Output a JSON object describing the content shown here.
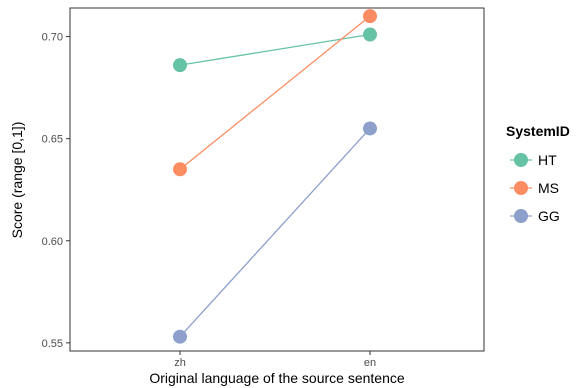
{
  "chart_data": {
    "type": "line",
    "categories": [
      "zh",
      "en"
    ],
    "xlabel": "Original language of the source sentence",
    "ylabel": "Score (range [0,1])",
    "ylim": [
      0.546,
      0.714
    ],
    "yticks": [
      0.55,
      0.6,
      0.65,
      0.7
    ],
    "ytick_labels": [
      "0.55",
      "0.60",
      "0.65",
      "0.70"
    ],
    "grid": false,
    "legend": {
      "title": "SystemID",
      "placement": "right"
    },
    "series": [
      {
        "name": "HT",
        "values": [
          0.686,
          0.701
        ],
        "color": "#66c2a5"
      },
      {
        "name": "MS",
        "values": [
          0.635,
          0.71
        ],
        "color": "#fc8d62"
      },
      {
        "name": "GG",
        "values": [
          0.553,
          0.655
        ],
        "color": "#8da0cb"
      }
    ]
  }
}
